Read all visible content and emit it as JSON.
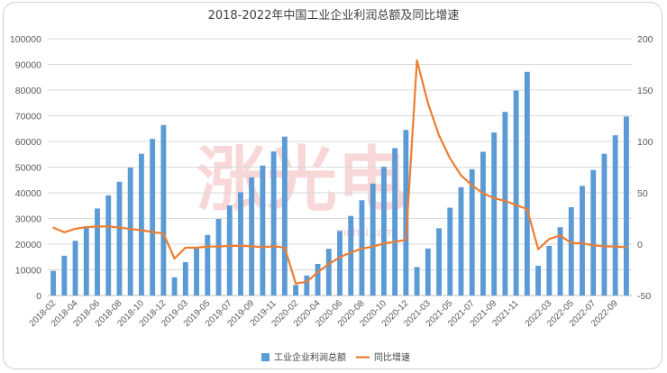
{
  "chart_data": {
    "type": "bar+line",
    "title": "2018-2022年中国工业企业利润总额及同比增速",
    "left_axis": {
      "min": 0,
      "max": 100000,
      "step": 10000
    },
    "right_axis": {
      "min": -50,
      "max": 200,
      "step": 50
    },
    "grid": true,
    "legend_position": "bottom",
    "watermark": {
      "text": "涨光电",
      "subtext": "mohai.com"
    },
    "tick_labels_shown": [
      "2018-02",
      "2018-04",
      "2018-06",
      "2018-08",
      "2018-10",
      "2018-12",
      "2019-03",
      "2019-05",
      "2019-07",
      "2019-09",
      "2019-11",
      "2020-02",
      "2020-04",
      "2020-06",
      "2020-08",
      "2020-10",
      "2020-12",
      "2021-03",
      "2021-05",
      "2021-07",
      "2021-09",
      "2021-11",
      "2022-01",
      "2022-03",
      "2022-05",
      "2022-07",
      "2022-09"
    ],
    "categories": [
      "2018-02",
      "2018-03",
      "2018-04",
      "2018-05",
      "2018-06",
      "2018-07",
      "2018-08",
      "2018-09",
      "2018-10",
      "2018-11",
      "2018-12",
      "2019-02",
      "2019-03",
      "2019-04",
      "2019-05",
      "2019-06",
      "2019-07",
      "2019-08",
      "2019-09",
      "2019-10",
      "2019-11",
      "2019-12",
      "2020-02",
      "2020-03",
      "2020-04",
      "2020-05",
      "2020-06",
      "2020-07",
      "2020-08",
      "2020-09",
      "2020-10",
      "2020-11",
      "2020-12",
      "2021-02",
      "2021-03",
      "2021-04",
      "2021-05",
      "2021-06",
      "2021-07",
      "2021-08",
      "2021-09",
      "2021-10",
      "2021-11",
      "2021-12",
      "2022-02",
      "2022-03",
      "2022-04",
      "2022-05",
      "2022-06",
      "2022-07",
      "2022-08",
      "2022-09",
      "2022-10"
    ],
    "series": [
      {
        "name": "工业企业利润总额",
        "type": "bar",
        "color": "#5b9bd5",
        "axis": "left",
        "values": [
          9600,
          15500,
          21300,
          27000,
          33900,
          39000,
          44300,
          49800,
          55200,
          61000,
          66400,
          7100,
          13000,
          18300,
          23600,
          29800,
          35100,
          40200,
          46000,
          50600,
          56100,
          61900,
          4100,
          7800,
          12300,
          18200,
          25100,
          31000,
          37100,
          43600,
          50100,
          57400,
          64500,
          11100,
          18300,
          26200,
          34200,
          42200,
          49200,
          56000,
          63500,
          71500,
          79800,
          87100,
          11600,
          19300,
          26600,
          34400,
          42700,
          48900,
          55200,
          62400,
          69700
        ]
      },
      {
        "name": "同比增速",
        "type": "line",
        "color": "#ed7d31",
        "axis": "right",
        "values": [
          16.1,
          11.6,
          15.0,
          16.5,
          17.2,
          17.2,
          16.2,
          14.7,
          13.6,
          11.8,
          10.3,
          -14.0,
          -3.3,
          -3.4,
          -2.3,
          -2.4,
          -1.7,
          -1.7,
          -2.1,
          -2.9,
          -2.1,
          -3.3,
          -38.3,
          -36.7,
          -27.4,
          -19.3,
          -12.8,
          -8.1,
          -4.4,
          -2.4,
          0.7,
          2.4,
          4.1,
          178.9,
          137.3,
          106.0,
          83.4,
          66.9,
          57.3,
          49.5,
          44.7,
          42.2,
          38.0,
          34.3,
          -5.0,
          5.0,
          8.5,
          1.0,
          1.0,
          -1.1,
          -2.1,
          -2.3,
          -3.0
        ]
      }
    ]
  }
}
